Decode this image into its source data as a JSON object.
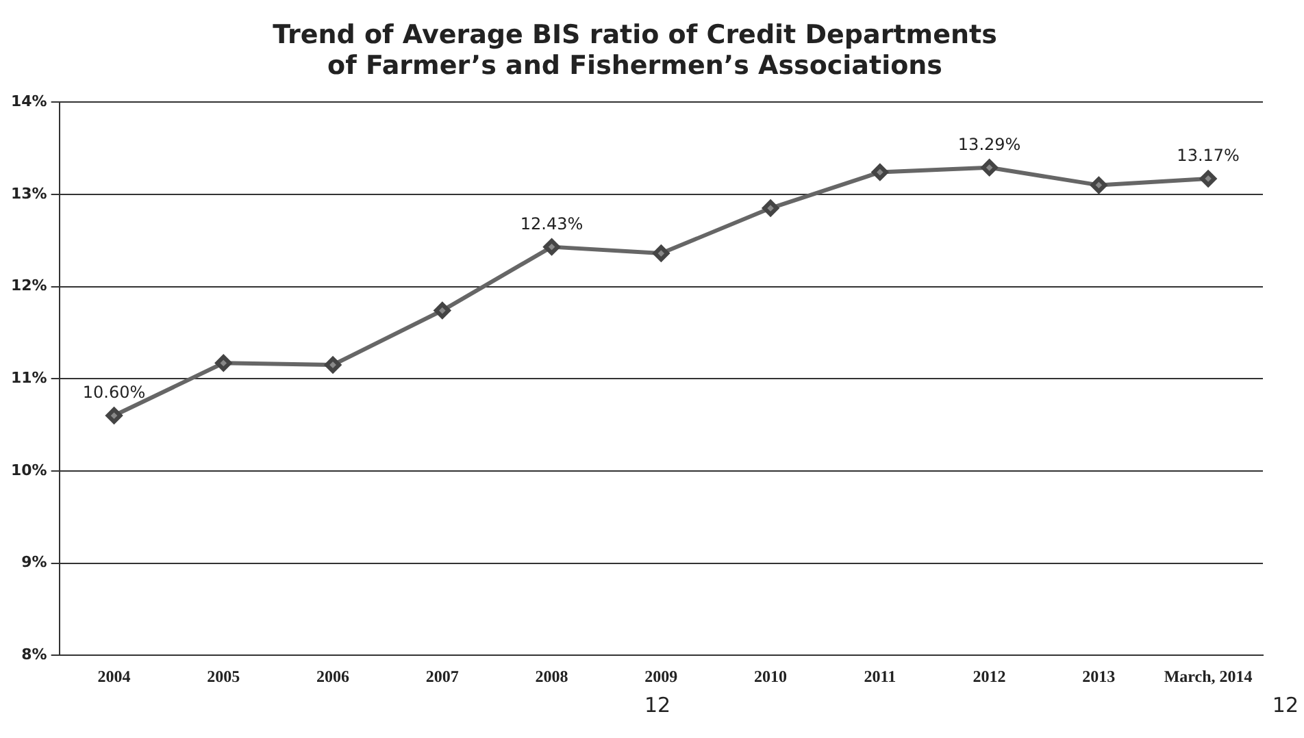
{
  "chart_data": {
    "type": "line",
    "title": "Trend of Average BIS ratio of Credit Departments of Farmer’s and Fishermen’s Associations",
    "categories": [
      "2004",
      "2005",
      "2006",
      "2007",
      "2008",
      "2009",
      "2010",
      "2011",
      "2012",
      "2013",
      "March, 2014"
    ],
    "series": [
      {
        "color": "#666666",
        "values": [
          10.6,
          11.17,
          11.15,
          11.74,
          12.43,
          12.36,
          12.85,
          13.24,
          13.29,
          13.1,
          13.17
        ],
        "value_labels": [
          "10.60%",
          null,
          null,
          null,
          "12.43%",
          null,
          null,
          null,
          "13.29%",
          null,
          "13.17%"
        ]
      }
    ],
    "ylim": [
      8,
      14
    ],
    "yticks": [
      {
        "value": 8,
        "label": "8%"
      },
      {
        "value": 9,
        "label": "9%"
      },
      {
        "value": 10,
        "label": "10%"
      },
      {
        "value": 11,
        "label": "11%"
      },
      {
        "value": 12,
        "label": "12%"
      },
      {
        "value": 13,
        "label": "13%"
      },
      {
        "value": 14,
        "label": "14%"
      }
    ],
    "grid": "y",
    "marker": "diamond",
    "line_style": "solid",
    "annotations": [
      "12",
      "12"
    ]
  }
}
